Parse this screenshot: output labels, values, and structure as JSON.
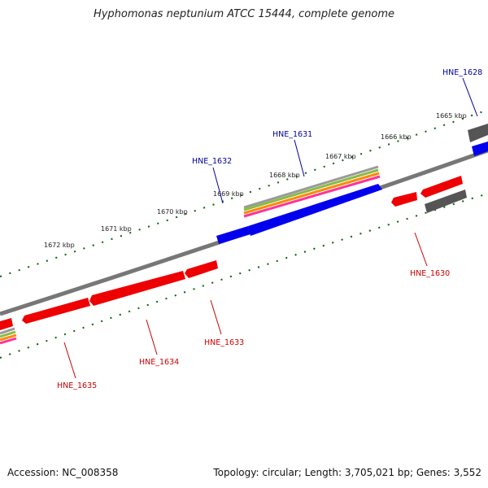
{
  "title": "Hyphomonas neptunium ATCC 15444, complete genome",
  "footer": {
    "accession": "Accession: NC_008358",
    "topology": "Topology: circular; Length: 3,705,021 bp; Genes: 3,552"
  },
  "scale_labels": [
    "1665 kbp",
    "1666 kbp",
    "1667 kbp",
    "1668 kbp",
    "1669 kbp",
    "1670 kbp",
    "1671 kbp",
    "1672 kbp"
  ],
  "gene_labels": {
    "forward": [
      "HNE_1628",
      "HNE_1631",
      "HNE_1632"
    ],
    "reverse": [
      "HNE_1630",
      "HNE_1633",
      "HNE_1634",
      "HNE_1635"
    ]
  },
  "colors": {
    "forward_gene": "#0000ee",
    "reverse_gene": "#ee0000",
    "other_feature": "#555555",
    "backbone": "#777777",
    "tick": "#006600",
    "label_forward": "#000099",
    "label_reverse": "#cc0000"
  }
}
